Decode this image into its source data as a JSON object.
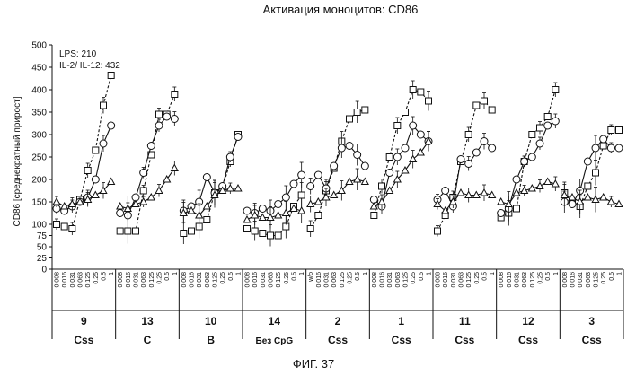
{
  "chart_data": {
    "type": "line",
    "title": "Активация моноцитов: CD86",
    "ylabel": "CD86  [среднекратный прирост]",
    "xlabel": "",
    "ylim": [
      0,
      500
    ],
    "yticks": [
      0,
      25,
      50,
      75,
      100,
      150,
      200,
      250,
      300,
      350,
      400,
      450,
      500
    ],
    "annotations": [
      "LPS: 210",
      "IL-2/ IL-12: 432"
    ],
    "caption": "ФИГ. 37",
    "concentrations": [
      "0.008",
      "0.016",
      "0.031",
      "0.063",
      "0.125",
      "0.25",
      "0.5",
      "1"
    ],
    "series_names": [
      "squares",
      "circles",
      "triangles"
    ],
    "groups": [
      {
        "id": "9",
        "label": "Css",
        "x": [
          "0.008",
          "0.016",
          "0.031",
          "0.063",
          "0.125",
          "0.25",
          "0.5",
          "1"
        ],
        "squares": [
          100,
          95,
          90,
          155,
          220,
          265,
          365,
          432
        ],
        "circles": [
          135,
          130,
          140,
          150,
          160,
          200,
          280,
          320
        ],
        "triangles": [
          150,
          140,
          145,
          150,
          155,
          165,
          175,
          195
        ]
      },
      {
        "id": "13",
        "label": "C",
        "x": [
          "0.008",
          "0.016",
          "0.031",
          "0.063",
          "0.125",
          "0.25",
          "0.5",
          "1"
        ],
        "squares": [
          85,
          85,
          85,
          175,
          255,
          345,
          345,
          390
        ],
        "circles": [
          125,
          120,
          160,
          215,
          275,
          320,
          340,
          335
        ],
        "triangles": [
          140,
          135,
          145,
          150,
          160,
          175,
          200,
          225
        ]
      },
      {
        "id": "10",
        "label": "B",
        "x": [
          "0.008",
          "0.016",
          "0.031",
          "0.063",
          "0.125",
          "0.25",
          "0.5",
          "1"
        ],
        "squares": [
          80,
          85,
          95,
          110,
          170,
          180,
          240,
          300
        ],
        "circles": [
          130,
          140,
          150,
          205,
          170,
          185,
          250,
          295
        ],
        "triangles": [
          125,
          130,
          120,
          140,
          165,
          175,
          180,
          180
        ]
      },
      {
        "id": "14",
        "label": "Без  CpG",
        "x": [
          "0.008",
          "0.016",
          "0.031",
          "0.063",
          "0.125",
          "0.25",
          "0.5",
          "1"
        ],
        "squares": [
          90,
          85,
          80,
          75,
          75,
          95,
          140,
          165
        ],
        "circles": [
          130,
          125,
          135,
          130,
          145,
          160,
          190,
          210
        ],
        "triangles": [
          110,
          120,
          115,
          115,
          120,
          125,
          135,
          130
        ]
      },
      {
        "id": "2",
        "label": "Css",
        "x": [
          "w/o",
          "0.016",
          "0.031",
          "0.063",
          "0.125",
          "0.25",
          "0.5",
          "1"
        ],
        "squares": [
          90,
          120,
          175,
          225,
          285,
          335,
          350,
          355
        ],
        "circles": [
          185,
          210,
          180,
          230,
          270,
          275,
          255,
          230
        ],
        "triangles": [
          145,
          150,
          160,
          165,
          175,
          195,
          200,
          195
        ]
      },
      {
        "id": "1",
        "label": "Css",
        "x": [
          "0.008",
          "0.016",
          "0.031",
          "0.063",
          "0.125",
          "0.25",
          "0.5",
          "1"
        ],
        "squares": [
          120,
          185,
          250,
          320,
          350,
          400,
          395,
          375
        ],
        "circles": [
          155,
          140,
          215,
          250,
          270,
          320,
          300,
          285
        ],
        "triangles": [
          140,
          150,
          175,
          200,
          220,
          245,
          260,
          285
        ]
      },
      {
        "id": "11",
        "label": "Css",
        "x": [
          "0.008",
          "0.016",
          "0.031",
          "0.063",
          "0.125",
          "0.25",
          "0.5",
          "1"
        ],
        "squares": [
          85,
          120,
          160,
          240,
          300,
          365,
          375,
          355
        ],
        "circles": [
          155,
          175,
          140,
          245,
          235,
          260,
          285,
          270
        ],
        "triangles": [
          145,
          130,
          150,
          170,
          165,
          165,
          170,
          165
        ]
      },
      {
        "id": "12",
        "label": "Css",
        "x": [
          "0.008",
          "0.016",
          "0.031",
          "0.063",
          "0.125",
          "0.25",
          "0.5",
          "1"
        ],
        "squares": [
          115,
          125,
          135,
          240,
          300,
          315,
          340,
          400
        ],
        "circles": [
          125,
          135,
          200,
          240,
          250,
          280,
          320,
          330
        ],
        "triangles": [
          150,
          145,
          170,
          175,
          180,
          185,
          195,
          190
        ]
      },
      {
        "id": "3",
        "label": "Css",
        "x": [
          "0.008",
          "0.016",
          "0.031",
          "0.063",
          "0.125",
          "0.25",
          "0.5",
          "1"
        ],
        "squares": [
          170,
          150,
          140,
          185,
          215,
          275,
          310,
          310
        ],
        "circles": [
          150,
          145,
          175,
          240,
          270,
          290,
          270,
          270
        ],
        "triangles": [
          165,
          160,
          150,
          160,
          155,
          160,
          150,
          145
        ]
      }
    ]
  }
}
